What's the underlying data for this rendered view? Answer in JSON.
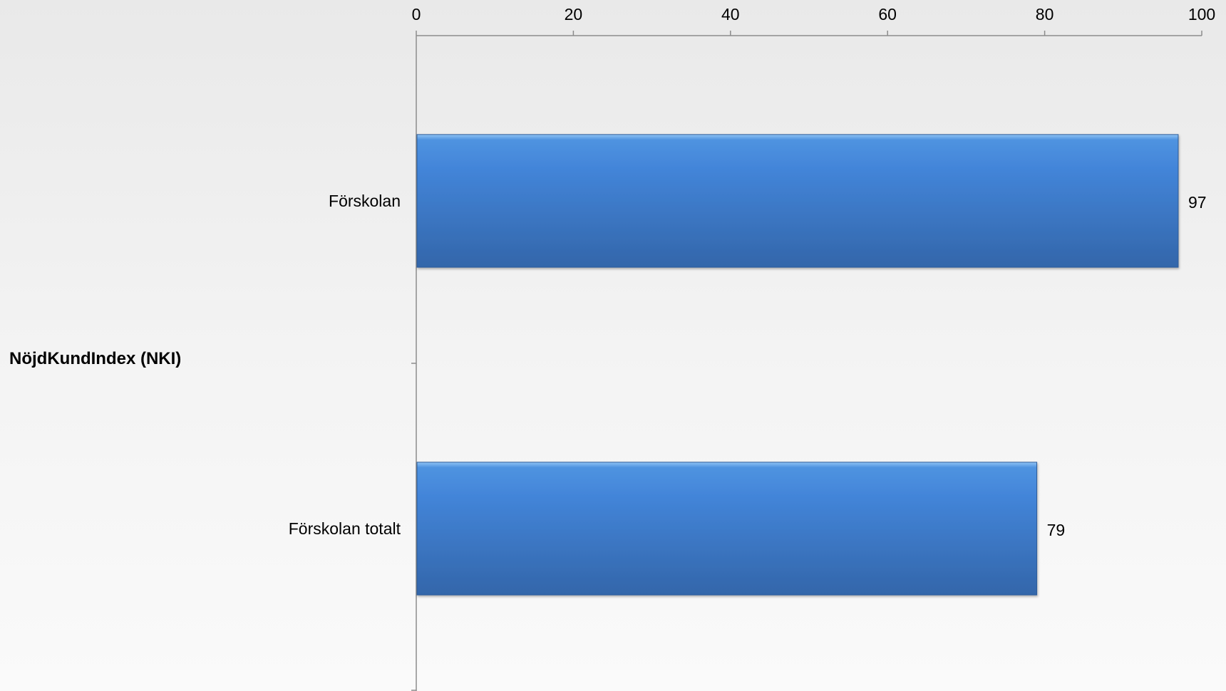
{
  "chart_data": {
    "type": "bar",
    "orientation": "horizontal",
    "group_label": "NöjdKundIndex (NKI)",
    "categories": [
      "Förskolan",
      "Förskolan totalt"
    ],
    "values": [
      97,
      79
    ],
    "xlim": [
      0,
      100
    ],
    "x_ticks": [
      0,
      20,
      40,
      60,
      80,
      100
    ],
    "x_axis_position": "top",
    "grid": false,
    "legend": "none",
    "bar_color": "#3a78c9"
  }
}
